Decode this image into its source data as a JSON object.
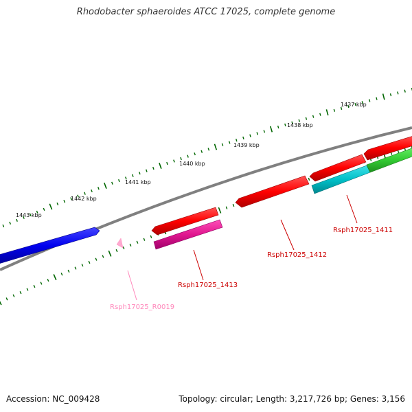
{
  "title": "Rhodobacter sphaeroides ATCC 17025, complete genome",
  "footer": {
    "accession": "Accession: NC_009428",
    "summary": "Topology: circular; Length: 3,217,726 bp; Genes: 3,156"
  },
  "ruler": {
    "labels": [
      "1437 kbp",
      "1438 kbp",
      "1439 kbp",
      "1440 kbp",
      "1441 kbp",
      "1442 kbp",
      "1443 kbp"
    ]
  },
  "features": [
    {
      "name": "Rsph17025_1411",
      "color": "#cc0000"
    },
    {
      "name": "Rsph17025_1412",
      "color": "#cc0000"
    },
    {
      "name": "Rsph17025_1413",
      "color": "#cc0000"
    },
    {
      "name": "Rsph17025_R0019",
      "color": "#ff88bb"
    }
  ],
  "colors": {
    "backbone": "#808080",
    "cds_forward": "#ff0000",
    "cds_reverse_blue": "#0000ee",
    "magenta": "#e0168f",
    "cyan": "#00c0c8",
    "green": "#33cc33",
    "tick": "#006600"
  }
}
